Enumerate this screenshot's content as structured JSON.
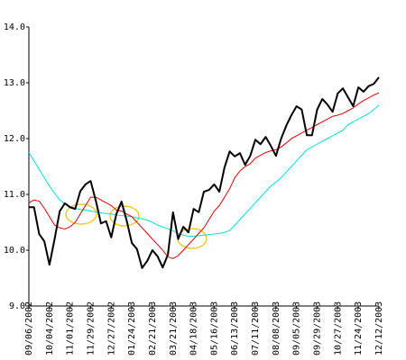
{
  "chart_data": {
    "type": "line",
    "categories": [
      "09/06/2002",
      null,
      null,
      null,
      "10/04/2002",
      null,
      null,
      null,
      "11/01/2002",
      null,
      null,
      null,
      "11/29/2002",
      null,
      null,
      null,
      "12/27/2002",
      null,
      null,
      null,
      "01/24/2003",
      null,
      null,
      null,
      "02/21/2003",
      null,
      null,
      null,
      "03/21/2003",
      null,
      null,
      null,
      "04/18/2003",
      null,
      null,
      null,
      "05/16/2003",
      null,
      null,
      null,
      "06/13/2003",
      null,
      null,
      null,
      "07/11/2003",
      null,
      null,
      null,
      "08/08/2003",
      null,
      null,
      null,
      "09/05/2003",
      null,
      null,
      null,
      "09/29/2003",
      null,
      null,
      null,
      "10/27/2003",
      null,
      null,
      null,
      "11/24/2003",
      null,
      null,
      null,
      "12/12/2003"
    ],
    "series": [
      {
        "color": "#00e0e0",
        "width": 1,
        "values": [
          11.75,
          11.6,
          11.45,
          11.3,
          11.15,
          11.02,
          10.9,
          10.83,
          10.78,
          10.75,
          10.73,
          10.72,
          10.7,
          10.69,
          10.67,
          10.66,
          10.65,
          10.63,
          10.62,
          10.61,
          10.6,
          10.58,
          10.56,
          10.54,
          10.5,
          10.45,
          10.42,
          10.38,
          10.35,
          10.3,
          10.27,
          10.25,
          10.25,
          10.26,
          10.27,
          10.28,
          10.29,
          10.3,
          10.32,
          10.35,
          10.45,
          10.55,
          10.65,
          10.75,
          10.85,
          10.95,
          11.05,
          11.15,
          11.22,
          11.3,
          11.4,
          11.5,
          11.6,
          11.7,
          11.8,
          11.85,
          11.9,
          11.95,
          12.0,
          12.05,
          12.1,
          12.15,
          12.25,
          12.3,
          12.35,
          12.4,
          12.45,
          12.52,
          12.6
        ]
      },
      {
        "color": "#e00000",
        "width": 1,
        "values": [
          10.85,
          10.9,
          10.88,
          10.75,
          10.6,
          10.45,
          10.4,
          10.38,
          10.42,
          10.5,
          10.65,
          10.8,
          10.95,
          10.95,
          10.9,
          10.85,
          10.8,
          10.72,
          10.7,
          10.65,
          10.6,
          10.5,
          10.4,
          10.3,
          10.2,
          10.1,
          10.0,
          9.88,
          9.85,
          9.9,
          10.0,
          10.1,
          10.2,
          10.3,
          10.4,
          10.55,
          10.7,
          10.8,
          10.95,
          11.1,
          11.3,
          11.42,
          11.5,
          11.55,
          11.65,
          11.7,
          11.75,
          11.78,
          11.8,
          11.85,
          11.92,
          12.0,
          12.05,
          12.1,
          12.15,
          12.2,
          12.25,
          12.3,
          12.35,
          12.4,
          12.42,
          12.45,
          12.5,
          12.55,
          12.62,
          12.68,
          12.73,
          12.78,
          12.82
        ]
      },
      {
        "color": "#000000",
        "width": 2,
        "values": [
          10.77,
          10.77,
          10.29,
          10.16,
          9.74,
          10.2,
          10.7,
          10.84,
          10.77,
          10.74,
          11.06,
          11.18,
          11.24,
          10.89,
          10.48,
          10.52,
          10.23,
          10.65,
          10.87,
          10.53,
          10.13,
          10.02,
          9.68,
          9.81,
          10.0,
          9.89,
          9.69,
          9.92,
          10.68,
          10.2,
          10.42,
          10.32,
          10.74,
          10.68,
          11.05,
          11.08,
          11.18,
          11.05,
          11.48,
          11.77,
          11.68,
          11.74,
          11.53,
          11.69,
          11.98,
          11.9,
          12.03,
          11.87,
          11.69,
          12.0,
          12.23,
          12.42,
          12.58,
          12.52,
          12.06,
          12.06,
          12.52,
          12.71,
          12.61,
          12.48,
          12.81,
          12.9,
          12.74,
          12.58,
          12.92,
          12.84,
          12.94,
          12.98,
          13.1
        ]
      }
    ],
    "ylim": [
      9.0,
      14.0
    ],
    "yticks": [
      {
        "value": 9,
        "label": "9.0"
      },
      {
        "value": 10,
        "label": "10.0"
      },
      {
        "value": 11,
        "label": "11.0"
      },
      {
        "value": 12,
        "label": "12.0"
      },
      {
        "value": 13,
        "label": "13.0"
      },
      {
        "value": 14,
        "label": "14.0"
      }
    ]
  }
}
